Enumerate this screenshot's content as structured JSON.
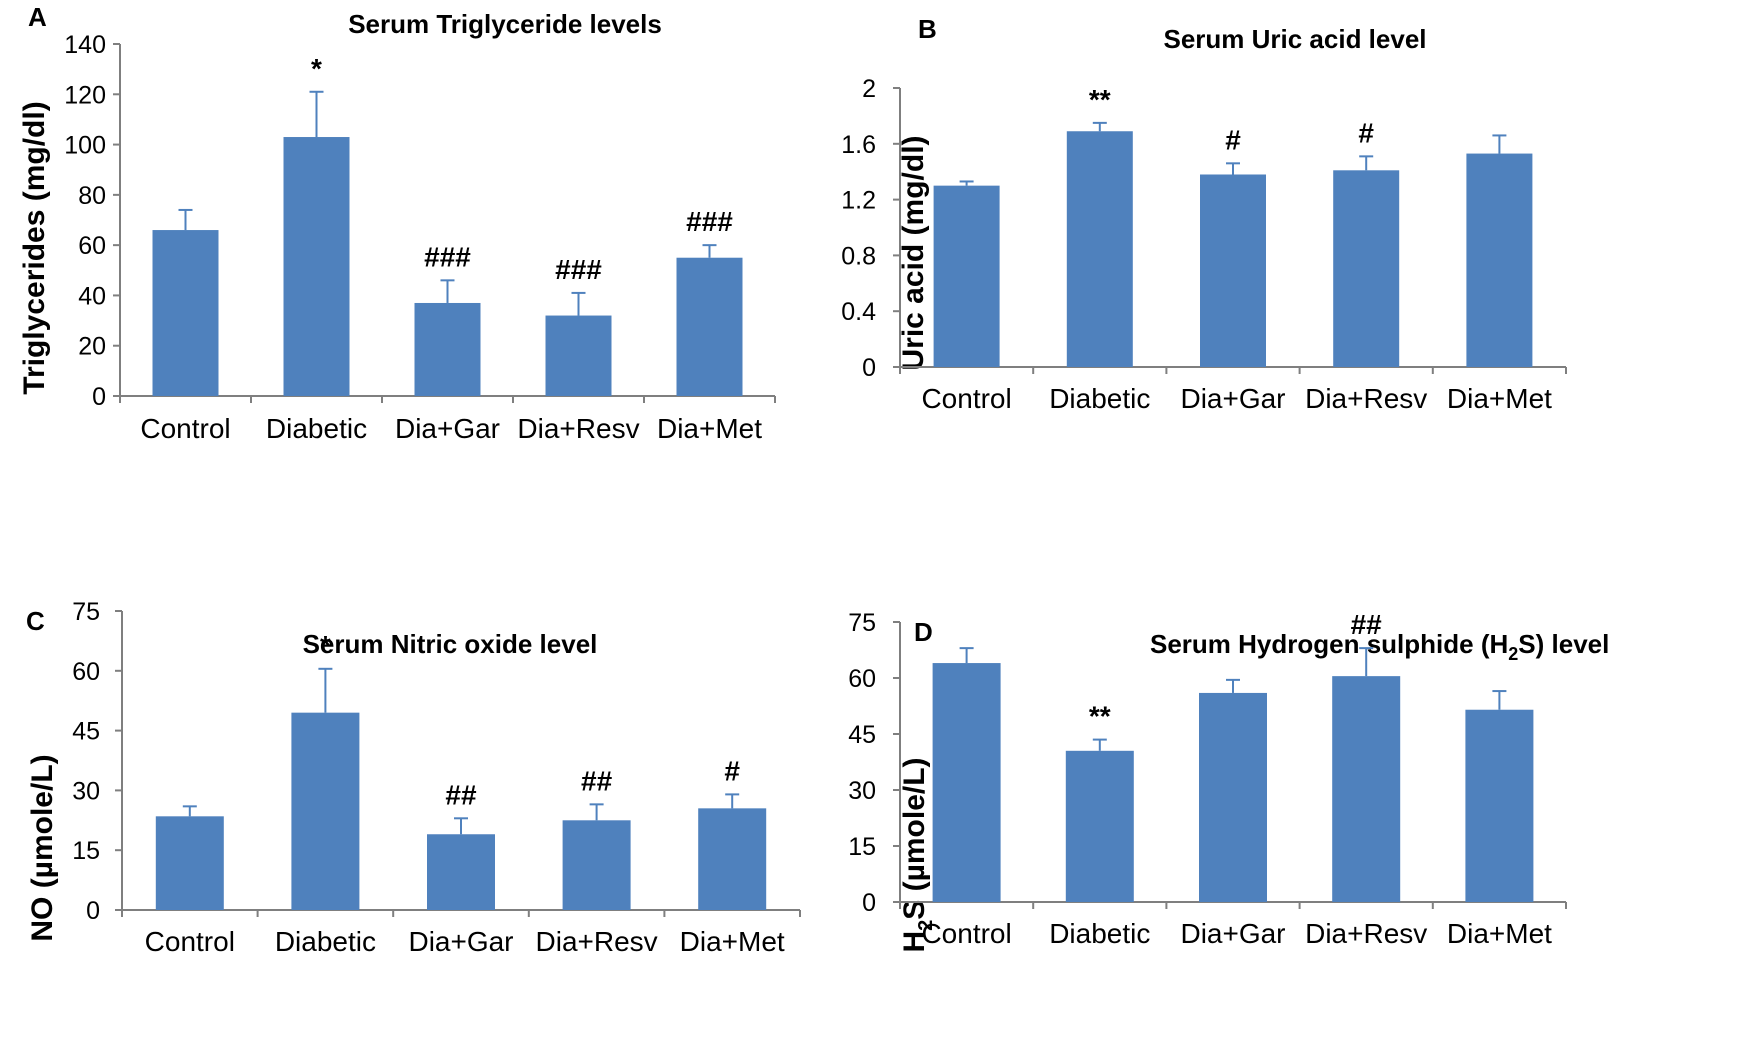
{
  "colors": {
    "bar": "#4f81bd",
    "axis": "#7f7f7f",
    "text": "#000000"
  },
  "chart_data": [
    {
      "panel": "A",
      "type": "bar",
      "title": "Serum  Triglyceride levels",
      "ylabel": "Triglycerides (mg/dl)",
      "ylabel_sub": "",
      "ylim": [
        0,
        140
      ],
      "yticks": [
        "0",
        "20",
        "40",
        "60",
        "80",
        "100",
        "120",
        "140"
      ],
      "yticks_num": [
        0,
        20,
        40,
        60,
        80,
        100,
        120,
        140
      ],
      "categories": [
        "Control",
        "Diabetic",
        "Dia+Gar",
        "Dia+Resv",
        "Dia+Met"
      ],
      "values": [
        66,
        103,
        37,
        32,
        55
      ],
      "errors": [
        8,
        18,
        9,
        9,
        5
      ],
      "annotations": [
        "",
        "*",
        "###",
        "###",
        "###"
      ]
    },
    {
      "panel": "B",
      "type": "bar",
      "title": "Serum Uric acid level",
      "ylabel": "Uric acid (mg/dl)",
      "ylabel_sub": "",
      "ylim": [
        0,
        2
      ],
      "yticks": [
        "0",
        "0.4",
        "0.8",
        "1.2",
        "1.6",
        "2"
      ],
      "yticks_num": [
        0,
        0.4,
        0.8,
        1.2,
        1.6,
        2
      ],
      "categories": [
        "Control",
        "Diabetic",
        "Dia+Gar",
        "Dia+Resv",
        "Dia+Met"
      ],
      "values": [
        1.3,
        1.69,
        1.38,
        1.41,
        1.53
      ],
      "errors": [
        0.03,
        0.06,
        0.08,
        0.1,
        0.13
      ],
      "annotations": [
        "",
        "**",
        "#",
        "#",
        ""
      ]
    },
    {
      "panel": "C",
      "type": "bar",
      "title": "Serum Nitric  oxide level",
      "ylabel": "NO (µmole/L)",
      "ylabel_sub": "",
      "ylim": [
        0,
        75
      ],
      "yticks": [
        "0",
        "15",
        "30",
        "45",
        "60",
        "75"
      ],
      "yticks_num": [
        0,
        15,
        30,
        45,
        60,
        75
      ],
      "categories": [
        "Control",
        "Diabetic",
        "Dia+Gar",
        "Dia+Resv",
        "Dia+Met"
      ],
      "values": [
        23.5,
        49.5,
        19,
        22.5,
        25.5
      ],
      "errors": [
        2.5,
        11,
        4,
        4,
        3.5
      ],
      "annotations": [
        "",
        "*",
        "##",
        "##",
        "#"
      ]
    },
    {
      "panel": "D",
      "type": "bar",
      "title": "Serum Hydrogen sulphide (H",
      "title_sub": "2",
      "title_end": "S) level",
      "ylabel": "H",
      "ylabel_sub": "2",
      "ylabel_end": "S (µmole/L)",
      "ylim": [
        0,
        75
      ],
      "yticks": [
        "0",
        "15",
        "30",
        "45",
        "60",
        "75"
      ],
      "yticks_num": [
        0,
        15,
        30,
        45,
        60,
        75
      ],
      "categories": [
        "Control",
        "Diabetic",
        "Dia+Gar",
        "Dia+Resv",
        "Dia+Met"
      ],
      "values": [
        64,
        40.5,
        56,
        60.5,
        51.5
      ],
      "errors": [
        4,
        3,
        3.5,
        7.5,
        5
      ],
      "annotations": [
        "",
        "**",
        "",
        "##",
        ""
      ]
    }
  ]
}
